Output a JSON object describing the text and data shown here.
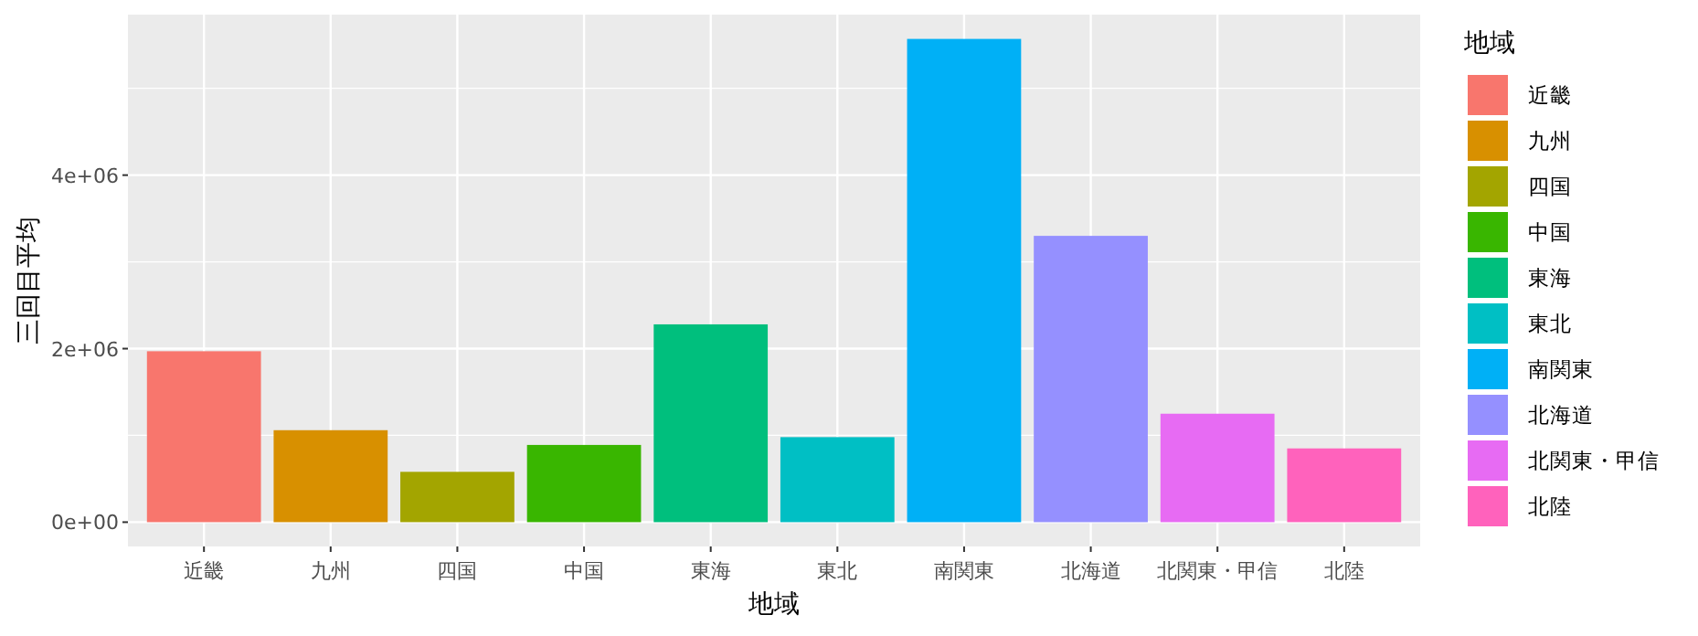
{
  "chart_data": {
    "type": "bar",
    "xlabel": "地域",
    "ylabel": "三回目平均",
    "legend_title": "地域",
    "categories": [
      "近畿",
      "九州",
      "四国",
      "中国",
      "東海",
      "東北",
      "南関東",
      "北海道",
      "北関東・甲信",
      "北陸"
    ],
    "stacked": true,
    "series": [
      {
        "name": "近畿",
        "color": "#f8766d",
        "values": [
          1970000,
          null,
          null,
          null,
          null,
          null,
          null,
          null,
          null,
          null
        ]
      },
      {
        "name": "九州",
        "color": "#d89000",
        "values": [
          null,
          1060000,
          null,
          null,
          null,
          null,
          null,
          null,
          null,
          null
        ]
      },
      {
        "name": "四国",
        "color": "#a3a500",
        "values": [
          null,
          null,
          580000,
          null,
          null,
          null,
          null,
          null,
          null,
          null
        ]
      },
      {
        "name": "中国",
        "color": "#39b600",
        "values": [
          null,
          null,
          null,
          890000,
          null,
          null,
          null,
          null,
          null,
          null
        ]
      },
      {
        "name": "東海",
        "color": "#00bf7d",
        "values": [
          null,
          null,
          null,
          null,
          2280000,
          null,
          null,
          null,
          null,
          null
        ]
      },
      {
        "name": "東北",
        "color": "#00bfc4",
        "values": [
          null,
          null,
          null,
          null,
          null,
          980000,
          null,
          null,
          null,
          null
        ]
      },
      {
        "name": "南関東",
        "color": "#00b0f6",
        "values": [
          null,
          null,
          null,
          null,
          null,
          null,
          5570000,
          null,
          null,
          null
        ]
      },
      {
        "name": "北海道",
        "color": "#9590ff",
        "values": [
          null,
          null,
          null,
          null,
          null,
          null,
          null,
          3300000,
          null,
          null
        ]
      },
      {
        "name": "北関東・甲信",
        "color": "#e76bf3",
        "values": [
          null,
          null,
          null,
          null,
          null,
          null,
          null,
          null,
          1250000,
          null
        ]
      },
      {
        "name": "北陸",
        "color": "#ff62bc",
        "values": [
          null,
          null,
          null,
          null,
          null,
          null,
          null,
          null,
          null,
          850000
        ]
      }
    ],
    "ylim": [
      -280000,
      5850000
    ],
    "yticks": [
      {
        "value": 0,
        "label": "0e+00"
      },
      {
        "value": 2000000,
        "label": "2e+06"
      },
      {
        "value": 4000000,
        "label": "4e+06"
      }
    ],
    "grid": true,
    "legend": "right"
  }
}
